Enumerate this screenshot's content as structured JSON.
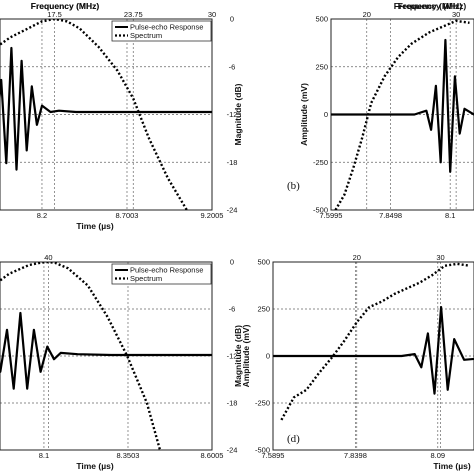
{
  "chart_data": [
    {
      "type": "line",
      "panel": "top-left",
      "top_axis": {
        "label": "Frequency (MHz)",
        "ticks": [
          "17.5",
          "23.75",
          "30"
        ]
      },
      "bottom_axis": {
        "label": "Time (µs)",
        "ticks": [
          "8.2",
          "8.7003",
          "9.2005"
        ]
      },
      "right_axis": {
        "label": "Magnitude (dB)",
        "ticks": [
          "0",
          "-6",
          "-12",
          "-18",
          "-24"
        ],
        "ylim": [
          -24,
          0
        ]
      },
      "legend": {
        "placement": "top-right",
        "entries": [
          "Pulse-echo Response",
          "Spectrum"
        ]
      },
      "grid": true,
      "series": [
        {
          "name": "Pulse-echo Response",
          "style": "solid",
          "x": [
            7.8,
            7.85,
            7.9,
            7.93,
            7.96,
            7.99,
            8.02,
            8.05,
            8.08,
            8.11,
            8.14,
            8.17,
            8.2,
            8.25,
            8.3,
            8.4,
            8.6,
            9.2
          ],
          "y": [
            0,
            0,
            0.1,
            -0.3,
            0.5,
            -0.8,
            1.0,
            -0.9,
            0.8,
            -0.6,
            0.4,
            -0.2,
            0.1,
            0,
            0.02,
            0,
            0,
            0
          ]
        },
        {
          "name": "Spectrum",
          "style": "dotted",
          "x": [
            10,
            12,
            14,
            15.5,
            16.5,
            17.5,
            18.5,
            19.5,
            21,
            22.5,
            23.75,
            25,
            26.5,
            28
          ],
          "y": [
            -7,
            -4.5,
            -2.3,
            -1.1,
            -0.3,
            0,
            -0.3,
            -1.2,
            -3.5,
            -6.5,
            -10,
            -15,
            -20,
            -24
          ]
        }
      ]
    },
    {
      "type": "line",
      "panel": "top-right",
      "label": "(b)",
      "top_axis": {
        "label": "Frequency (MHz)",
        "ticks": [
          "20",
          "30"
        ]
      },
      "bottom_axis": {
        "label": "",
        "ticks": [
          "7.5995",
          "7.8498",
          "8.1"
        ]
      },
      "left_axis": {
        "label": "Amplitude (mV)",
        "ticks": [
          "500",
          "250",
          "0",
          "-250",
          "-500"
        ],
        "ylim": [
          -500,
          500
        ]
      },
      "grid": true,
      "series": [
        {
          "name": "Pulse-echo Response",
          "style": "solid",
          "x": [
            7.6,
            7.95,
            8.0,
            8.02,
            8.04,
            8.06,
            8.08,
            8.1,
            8.12,
            8.14,
            8.16,
            8.2,
            8.4
          ],
          "y": [
            0,
            0,
            20,
            -80,
            150,
            -250,
            390,
            -300,
            200,
            -100,
            30,
            0,
            0
          ]
        },
        {
          "name": "Spectrum",
          "style": "dotted",
          "x": [
            16.5,
            17.5,
            18.5,
            19.5,
            20.5,
            22,
            23.5,
            25,
            27,
            29,
            30,
            31.5
          ],
          "y": [
            -500,
            -420,
            -280,
            -120,
            60,
            200,
            300,
            370,
            430,
            470,
            490,
            480
          ]
        }
      ]
    },
    {
      "type": "line",
      "panel": "bottom-left",
      "top_axis": {
        "label": "Frequency (MHz)",
        "ticks": [
          "40"
        ]
      },
      "bottom_axis": {
        "label": "Time (µs)",
        "ticks": [
          "8.1",
          "8.3503",
          "8.6005"
        ]
      },
      "right_axis": {
        "label": "Magnitude (dB)",
        "ticks": [
          "0",
          "-6",
          "-12",
          "-18",
          "-24"
        ],
        "ylim": [
          -24,
          0
        ]
      },
      "legend": {
        "placement": "top-right",
        "entries": [
          "Pulse-echo Response",
          "Spectrum"
        ]
      },
      "grid": true,
      "series": [
        {
          "name": "Pulse-echo Response",
          "style": "solid",
          "x": [
            7.8,
            7.9,
            7.95,
            7.97,
            7.99,
            8.01,
            8.03,
            8.05,
            8.07,
            8.09,
            8.11,
            8.13,
            8.15,
            8.2,
            8.3,
            8.6
          ],
          "y": [
            0,
            0,
            0.1,
            -0.4,
            0.6,
            -0.8,
            1.0,
            -0.8,
            0.6,
            -0.4,
            0.2,
            -0.1,
            0.05,
            0.02,
            0,
            0
          ]
        },
        {
          "name": "Spectrum",
          "style": "dotted",
          "x": [
            25,
            30,
            34,
            37,
            39,
            40,
            41,
            43,
            46,
            49,
            52,
            55,
            57
          ],
          "y": [
            -8,
            -4,
            -1.5,
            -0.4,
            -0.05,
            0,
            -0.1,
            -0.8,
            -3,
            -7,
            -12,
            -18,
            -24
          ]
        }
      ]
    },
    {
      "type": "line",
      "panel": "bottom-right",
      "label": "(d)",
      "top_axis": {
        "label": "Frequency (MHz)",
        "ticks": [
          "20",
          "30"
        ]
      },
      "bottom_axis": {
        "label": "Time (µs)",
        "ticks": [
          "7.5895",
          "7.8398",
          "8.09"
        ]
      },
      "left_axis": {
        "label": "Amplitude (mV)",
        "ticks": [
          "500",
          "250",
          "0",
          "-250",
          "-500"
        ],
        "ylim": [
          -500,
          500
        ]
      },
      "grid": true,
      "series": [
        {
          "name": "Pulse-echo Response",
          "style": "solid",
          "x": [
            7.59,
            7.98,
            8.02,
            8.04,
            8.06,
            8.08,
            8.1,
            8.12,
            8.14,
            8.17,
            8.3
          ],
          "y": [
            0,
            0,
            10,
            -60,
            120,
            -200,
            260,
            -180,
            90,
            -20,
            0
          ]
        },
        {
          "name": "Spectrum",
          "style": "dotted",
          "x": [
            11,
            12.5,
            14,
            15.5,
            17,
            18.5,
            20,
            21.5,
            23,
            24.5,
            26,
            27.5,
            29,
            30.5,
            32,
            33.5
          ],
          "y": [
            -340,
            -220,
            -180,
            -90,
            -10,
            80,
            180,
            260,
            290,
            330,
            360,
            390,
            430,
            480,
            490,
            480
          ]
        }
      ]
    }
  ]
}
